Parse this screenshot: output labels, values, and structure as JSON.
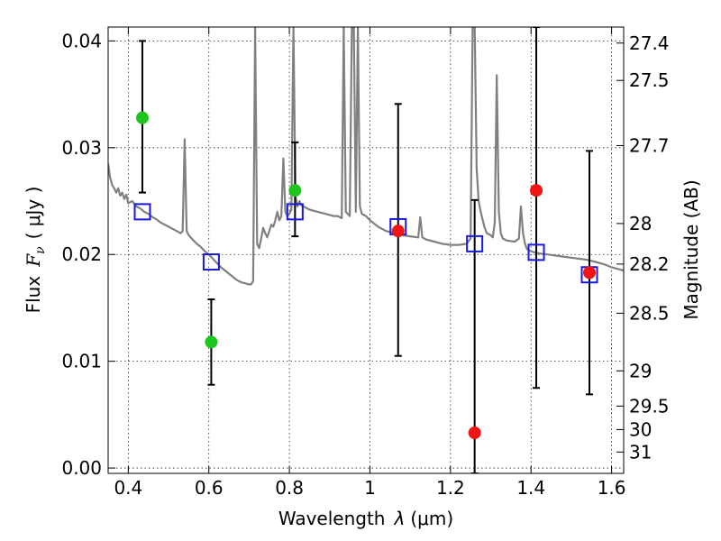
{
  "chart_data": {
    "type": "scatter",
    "xlabel": "Wavelength",
    "xlabel_symbol": "λ",
    "xlabel_unit": "(μm)",
    "ylabel": "Flux",
    "ylabel_symbol": "F",
    "ylabel_subscript": "ν",
    "ylabel_unit": "( μJy )",
    "y2label": "Magnitude (AB)",
    "xlim": [
      0.35,
      1.63
    ],
    "ylim": [
      -0.0005,
      0.0413
    ],
    "grid": true,
    "x_ticks": [
      {
        "value": 0.4,
        "label": "0.4"
      },
      {
        "value": 0.6,
        "label": "0.6"
      },
      {
        "value": 0.8,
        "label": "0.8"
      },
      {
        "value": 1.0,
        "label": "1"
      },
      {
        "value": 1.2,
        "label": "1.2"
      },
      {
        "value": 1.4,
        "label": "1.4"
      },
      {
        "value": 1.6,
        "label": "1.6"
      }
    ],
    "y_ticks": [
      {
        "value": 0.0,
        "label": "0.00"
      },
      {
        "value": 0.01,
        "label": "0.01"
      },
      {
        "value": 0.02,
        "label": "0.02"
      },
      {
        "value": 0.03,
        "label": "0.03"
      },
      {
        "value": 0.04,
        "label": "0.04"
      }
    ],
    "y2_ticks": [
      {
        "flux": 0.0398,
        "label": "27.4"
      },
      {
        "flux": 0.0363,
        "label": "27.5"
      },
      {
        "flux": 0.0302,
        "label": "27.7"
      },
      {
        "flux": 0.0229,
        "label": "28"
      },
      {
        "flux": 0.0191,
        "label": "28.2"
      },
      {
        "flux": 0.0145,
        "label": "28.5"
      },
      {
        "flux": 0.0091,
        "label": "29"
      },
      {
        "flux": 0.0058,
        "label": "29.5"
      },
      {
        "flux": 0.0036,
        "label": "30"
      },
      {
        "flux": 0.0015,
        "label": "31"
      }
    ],
    "colors": {
      "model": "#808080",
      "green": "#1fc41f",
      "red": "#f01414",
      "square": "#1a1adf",
      "errorbar": "#000000"
    },
    "model_spectrum": {
      "x": [
        0.35,
        0.355,
        0.36,
        0.365,
        0.37,
        0.375,
        0.38,
        0.385,
        0.39,
        0.395,
        0.4,
        0.41,
        0.42,
        0.43,
        0.44,
        0.45,
        0.46,
        0.47,
        0.48,
        0.49,
        0.5,
        0.51,
        0.52,
        0.53,
        0.535,
        0.54,
        0.545,
        0.55,
        0.56,
        0.57,
        0.58,
        0.59,
        0.6,
        0.61,
        0.62,
        0.63,
        0.64,
        0.65,
        0.66,
        0.67,
        0.68,
        0.69,
        0.7,
        0.705,
        0.71,
        0.715,
        0.72,
        0.725,
        0.73,
        0.735,
        0.74,
        0.745,
        0.75,
        0.755,
        0.76,
        0.765,
        0.77,
        0.775,
        0.78,
        0.785,
        0.79,
        0.795,
        0.8,
        0.805,
        0.81,
        0.815,
        0.82,
        0.825,
        0.83,
        0.84,
        0.85,
        0.86,
        0.87,
        0.88,
        0.89,
        0.9,
        0.91,
        0.92,
        0.93,
        0.935,
        0.94,
        0.945,
        0.95,
        0.955,
        0.96,
        0.965,
        0.97,
        0.975,
        0.98,
        0.99,
        1.0,
        1.02,
        1.04,
        1.06,
        1.08,
        1.1,
        1.12,
        1.125,
        1.13,
        1.135,
        1.14,
        1.16,
        1.18,
        1.2,
        1.22,
        1.24,
        1.25,
        1.255,
        1.26,
        1.265,
        1.27,
        1.275,
        1.28,
        1.285,
        1.29,
        1.3,
        1.305,
        1.31,
        1.315,
        1.32,
        1.325,
        1.33,
        1.34,
        1.36,
        1.37,
        1.375,
        1.38,
        1.385,
        1.39,
        1.4,
        1.42,
        1.44,
        1.46,
        1.48,
        1.5,
        1.52,
        1.54,
        1.56,
        1.58,
        1.6,
        1.62,
        1.63
      ],
      "y": [
        0.0285,
        0.0272,
        0.0265,
        0.0262,
        0.0258,
        0.0262,
        0.0255,
        0.0258,
        0.0252,
        0.0256,
        0.0248,
        0.025,
        0.0245,
        0.0243,
        0.024,
        0.0238,
        0.0235,
        0.0233,
        0.023,
        0.0228,
        0.0226,
        0.0224,
        0.0222,
        0.022,
        0.0222,
        0.0308,
        0.0222,
        0.0218,
        0.0214,
        0.021,
        0.0207,
        0.0203,
        0.02,
        0.0196,
        0.0192,
        0.0188,
        0.0185,
        0.0182,
        0.0179,
        0.0176,
        0.0174,
        0.0173,
        0.0172,
        0.0172,
        0.0175,
        0.0413,
        0.021,
        0.0206,
        0.0215,
        0.0225,
        0.022,
        0.0216,
        0.0222,
        0.0228,
        0.0226,
        0.0232,
        0.024,
        0.0232,
        0.0236,
        0.029,
        0.024,
        0.0236,
        0.0238,
        0.0242,
        0.0413,
        0.0255,
        0.0245,
        0.025,
        0.0246,
        0.0244,
        0.0242,
        0.0241,
        0.024,
        0.0239,
        0.0238,
        0.0237,
        0.0236,
        0.0236,
        0.0234,
        0.0413,
        0.024,
        0.0238,
        0.0236,
        0.0413,
        0.0413,
        0.024,
        0.0413,
        0.0245,
        0.0238,
        0.0236,
        0.0232,
        0.0226,
        0.0222,
        0.022,
        0.0218,
        0.0217,
        0.0216,
        0.0235,
        0.0216,
        0.0215,
        0.0214,
        0.0212,
        0.021,
        0.0209,
        0.0209,
        0.021,
        0.0215,
        0.0413,
        0.0413,
        0.028,
        0.025,
        0.024,
        0.0232,
        0.0225,
        0.022,
        0.0218,
        0.0216,
        0.023,
        0.0368,
        0.024,
        0.022,
        0.0215,
        0.0213,
        0.0212,
        0.0215,
        0.0245,
        0.022,
        0.021,
        0.0205,
        0.0203,
        0.0201,
        0.02,
        0.0199,
        0.0198,
        0.0197,
        0.0196,
        0.0195,
        0.0193,
        0.0191,
        0.0188,
        0.0186,
        0.0185
      ]
    },
    "squares": [
      {
        "x": 0.435,
        "y": 0.024
      },
      {
        "x": 0.606,
        "y": 0.0193
      },
      {
        "x": 0.814,
        "y": 0.024
      },
      {
        "x": 1.07,
        "y": 0.0226
      },
      {
        "x": 1.26,
        "y": 0.021
      },
      {
        "x": 1.413,
        "y": 0.0202
      },
      {
        "x": 1.545,
        "y": 0.0181
      }
    ],
    "green_points": [
      {
        "x": 0.435,
        "y": 0.0328,
        "yerr_low": 0.0258,
        "yerr_high": 0.04
      },
      {
        "x": 0.606,
        "y": 0.0118,
        "yerr_low": 0.0078,
        "yerr_high": 0.0158
      },
      {
        "x": 0.814,
        "y": 0.026,
        "yerr_low": 0.0217,
        "yerr_high": 0.0305
      }
    ],
    "red_points": [
      {
        "x": 1.07,
        "y": 0.0222,
        "yerr_low": 0.0105,
        "yerr_high": 0.0341
      },
      {
        "x": 1.26,
        "y": 0.0033,
        "yerr_low": -0.0005,
        "yerr_high": 0.0251
      },
      {
        "x": 1.413,
        "y": 0.026,
        "yerr_low": 0.0075,
        "yerr_high": 0.0413
      },
      {
        "x": 1.545,
        "y": 0.0183,
        "yerr_low": 0.0069,
        "yerr_high": 0.0297
      }
    ]
  }
}
